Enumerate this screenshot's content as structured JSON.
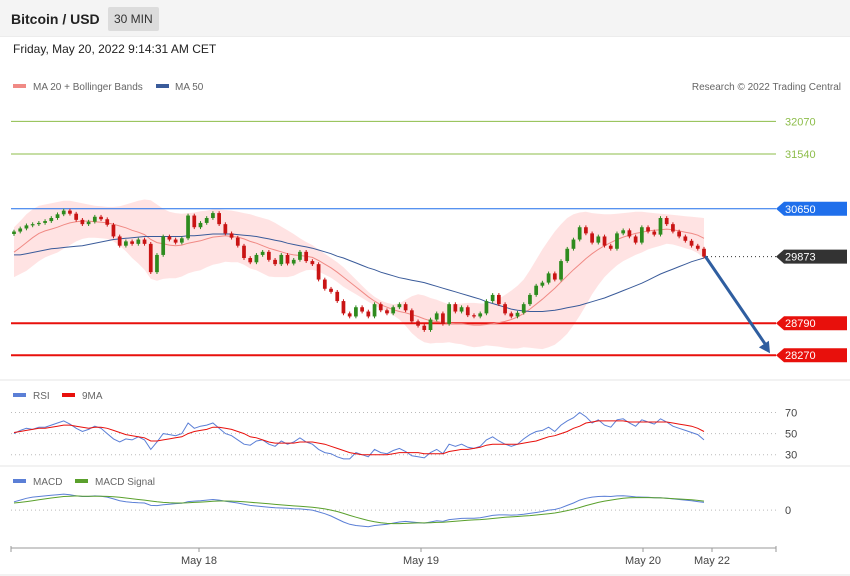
{
  "header": {
    "title": "Bitcoin / USD",
    "timeframe": "30 MIN"
  },
  "datetime": "Friday, May 20, 2022 9:14:31 AM CET",
  "copyright": "Research © 2022 Trading Central",
  "colors": {
    "resistance": "#8dbd4a",
    "pivot": "#1f6feb",
    "support": "#e8100c",
    "last": "#333333",
    "ma20": "#f08a85",
    "ma50": "#3a5b9a",
    "band": "#ffd9d9",
    "up": "#2e8b1e",
    "down": "#c91414",
    "rsi": "#5b7fd6",
    "rsi_ma": "#e8100c",
    "macd": "#5b7fd6",
    "macd_signal": "#5aa02c"
  },
  "chart_data": [
    {
      "type": "candlestick",
      "legend": [
        "MA 20 + Bollinger Bands",
        "MA 50"
      ],
      "ylim": [
        27900,
        32450
      ],
      "levels": [
        {
          "value": 32070,
          "label": "32070",
          "kind": "resistance"
        },
        {
          "value": 31540,
          "label": "31540",
          "kind": "resistance"
        },
        {
          "value": 30650,
          "label": "30650",
          "kind": "pivot"
        },
        {
          "value": 28790,
          "label": "28790",
          "kind": "support"
        },
        {
          "value": 28270,
          "label": "28270",
          "kind": "support"
        }
      ],
      "last_price": {
        "value": 29873,
        "label": "29873"
      },
      "forecast_arrow": {
        "from": 29860,
        "to": 28270
      },
      "closes": [
        30280,
        30330,
        30380,
        30400,
        30420,
        30450,
        30500,
        30560,
        30620,
        30570,
        30470,
        30400,
        30440,
        30520,
        30480,
        30390,
        30200,
        30050,
        30120,
        30080,
        30150,
        30080,
        29620,
        29900,
        30200,
        30150,
        30100,
        30170,
        30540,
        30350,
        30420,
        30500,
        30580,
        30400,
        30250,
        30180,
        30050,
        29850,
        29780,
        29900,
        29950,
        29820,
        29750,
        29900,
        29760,
        29820,
        29950,
        29800,
        29750,
        29500,
        29350,
        29300,
        29150,
        28950,
        28900,
        29050,
        28980,
        28900,
        29100,
        29000,
        28950,
        29050,
        29100,
        29000,
        28820,
        28750,
        28680,
        28850,
        28950,
        28780,
        29100,
        28980,
        29050,
        28920,
        28900,
        28950,
        29150,
        29250,
        29100,
        28950,
        28900,
        28960,
        29100,
        29250,
        29400,
        29450,
        29600,
        29500,
        29800,
        30000,
        30150,
        30350,
        30250,
        30100,
        30200,
        30050,
        30000,
        30250,
        30300,
        30200,
        30100,
        30350,
        30280,
        30230,
        30500,
        30400,
        30280,
        30200,
        30130,
        30050,
        30000,
        29873
      ],
      "ma20": [
        29945,
        30020,
        30100,
        30180,
        30250,
        30290,
        30320,
        30350,
        30390,
        30420,
        30440,
        30450,
        30450,
        30440,
        30430,
        30420,
        30400,
        30370,
        30340,
        30300,
        30270,
        30230,
        30150,
        30100,
        30080,
        30060,
        30050,
        30060,
        30090,
        30110,
        30130,
        30160,
        30190,
        30200,
        30210,
        30200,
        30190,
        30160,
        30120,
        30090,
        30050,
        30010,
        29980,
        29950,
        29920,
        29900,
        29890,
        29880,
        29860,
        29810,
        29750,
        29690,
        29620,
        29540,
        29460,
        29380,
        29300,
        29220,
        29150,
        29090,
        29050,
        29010,
        28980,
        28960,
        28930,
        28900,
        28860,
        28830,
        28820,
        28800,
        28790,
        28780,
        28780,
        28770,
        28760,
        28760,
        28770,
        28780,
        28800,
        28820,
        28850,
        28890,
        28950,
        29020,
        29100,
        29180,
        29270,
        29360,
        29460,
        29560,
        29660,
        29750,
        29840,
        29920,
        29990,
        30050,
        30100,
        30150,
        30190,
        30220,
        30250,
        30270,
        30290,
        30300,
        30310,
        30320,
        30310,
        30290,
        30270,
        30250,
        30220,
        30170
      ],
      "band_upper": [
        30350,
        30450,
        30560,
        30640,
        30700,
        30720,
        30740,
        30760,
        30780,
        30780,
        30760,
        30740,
        30720,
        30700,
        30690,
        30680,
        30680,
        30690,
        30720,
        30750,
        30780,
        30800,
        30790,
        30720,
        30650,
        30600,
        30580,
        30570,
        30580,
        30590,
        30610,
        30620,
        30640,
        30640,
        30630,
        30620,
        30600,
        30580,
        30560,
        30530,
        30500,
        30470,
        30420,
        30360,
        30300,
        30240,
        30170,
        30110,
        30060,
        29990,
        29920,
        29850,
        29780,
        29700,
        29600,
        29500,
        29400,
        29300,
        29220,
        29160,
        29120,
        29100,
        29110,
        29170,
        29230,
        29260,
        29240,
        29200,
        29170,
        29130,
        29100,
        29100,
        29110,
        29120,
        29120,
        29110,
        29110,
        29140,
        29190,
        29250,
        29320,
        29400,
        29500,
        29650,
        29820,
        29990,
        30140,
        30280,
        30400,
        30500,
        30560,
        30590,
        30600,
        30580,
        30570,
        30560,
        30560,
        30570,
        30580,
        30590,
        30600,
        30600,
        30590,
        30580,
        30570,
        30560,
        30550,
        30540,
        30530,
        30520,
        30510,
        30500
      ],
      "band_lower": [
        29540,
        29590,
        29640,
        29720,
        29800,
        29860,
        29900,
        29940,
        30000,
        30060,
        30120,
        30160,
        30180,
        30180,
        30170,
        30160,
        30120,
        30050,
        29960,
        29850,
        29760,
        29660,
        29510,
        29480,
        29510,
        29520,
        29520,
        29550,
        29600,
        29630,
        29650,
        29700,
        29740,
        29760,
        29790,
        29780,
        29780,
        29740,
        29680,
        29650,
        29600,
        29550,
        29540,
        29540,
        29540,
        29560,
        29610,
        29650,
        29660,
        29630,
        29580,
        29530,
        29460,
        29380,
        29320,
        29260,
        29200,
        29140,
        29080,
        29020,
        28980,
        28920,
        28850,
        28750,
        28630,
        28540,
        28480,
        28460,
        28470,
        28470,
        28480,
        28460,
        28450,
        28420,
        28400,
        28410,
        28430,
        28420,
        28410,
        28390,
        28380,
        28380,
        28400,
        28390,
        28380,
        28370,
        28400,
        28440,
        28520,
        28620,
        28760,
        28910,
        29080,
        29260,
        29410,
        29540,
        29640,
        29730,
        29800,
        29850,
        29900,
        29940,
        29990,
        30020,
        30050,
        30080,
        30070,
        30040,
        30010,
        29980,
        29930,
        29840
      ],
      "ma50": [
        29900,
        29900,
        29920,
        29940,
        29960,
        29980,
        30000,
        30010,
        30020,
        30030,
        30040,
        30050,
        30070,
        30090,
        30110,
        30130,
        30150,
        30160,
        30170,
        30180,
        30190,
        30200,
        30200,
        30200,
        30200,
        30200,
        30200,
        30200,
        30210,
        30210,
        30220,
        30230,
        30240,
        30240,
        30240,
        30240,
        30230,
        30220,
        30210,
        30200,
        30180,
        30160,
        30140,
        30120,
        30090,
        30070,
        30050,
        30030,
        30010,
        29980,
        29950,
        29920,
        29880,
        29850,
        29810,
        29770,
        29730,
        29690,
        29660,
        29620,
        29590,
        29560,
        29530,
        29510,
        29490,
        29470,
        29450,
        29420,
        29390,
        29360,
        29330,
        29300,
        29270,
        29240,
        29210,
        29180,
        29140,
        29110,
        29080,
        29050,
        29020,
        29000,
        28990,
        28980,
        28980,
        28980,
        28990,
        29000,
        29020,
        29040,
        29060,
        29080,
        29110,
        29140,
        29170,
        29200,
        29240,
        29280,
        29320,
        29360,
        29400,
        29440,
        29490,
        29540,
        29590,
        29630,
        29670,
        29710,
        29750,
        29790,
        29820,
        29850
      ]
    },
    {
      "type": "line",
      "legend": [
        "RSI",
        "9MA"
      ],
      "ylim": [
        25,
        78
      ],
      "yticks": [
        70,
        50,
        30
      ],
      "reference_lines": [
        70,
        50,
        30
      ],
      "series": [
        {
          "name": "RSI",
          "values": [
            50,
            53,
            55,
            54,
            56,
            56,
            58,
            60,
            62,
            59,
            55,
            52,
            54,
            57,
            55,
            50,
            45,
            42,
            45,
            44,
            47,
            44,
            35,
            42,
            50,
            49,
            48,
            50,
            60,
            55,
            57,
            58,
            60,
            55,
            50,
            48,
            44,
            40,
            39,
            43,
            44,
            40,
            38,
            43,
            40,
            42,
            46,
            42,
            40,
            35,
            32,
            31,
            28,
            26,
            26,
            32,
            30,
            28,
            35,
            32,
            31,
            34,
            36,
            33,
            29,
            28,
            27,
            32,
            35,
            31,
            40,
            38,
            40,
            37,
            36,
            38,
            44,
            47,
            43,
            40,
            38,
            40,
            45,
            49,
            52,
            53,
            56,
            52,
            58,
            62,
            65,
            70,
            66,
            60,
            63,
            58,
            56,
            63,
            64,
            60,
            57,
            63,
            61,
            59,
            64,
            61,
            57,
            55,
            53,
            51,
            49,
            44
          ]
        },
        {
          "name": "9MA",
          "values": [
            51,
            52,
            53,
            54,
            55,
            55,
            56,
            57,
            58,
            58,
            57,
            56,
            55,
            56,
            56,
            55,
            53,
            51,
            49,
            48,
            47,
            46,
            43,
            43,
            44,
            45,
            46,
            47,
            50,
            52,
            53,
            54,
            56,
            56,
            55,
            54,
            52,
            50,
            47,
            46,
            44,
            42,
            41,
            41,
            41,
            41,
            42,
            42,
            42,
            41,
            40,
            38,
            36,
            34,
            32,
            31,
            30,
            30,
            30,
            30,
            30,
            31,
            32,
            32,
            32,
            32,
            31,
            31,
            31,
            31,
            33,
            34,
            35,
            35,
            36,
            37,
            39,
            40,
            40,
            40,
            40,
            40,
            41,
            42,
            43,
            45,
            47,
            48,
            50,
            52,
            55,
            57,
            60,
            61,
            62,
            62,
            62,
            62,
            62,
            61,
            61,
            61,
            61,
            61,
            61,
            61,
            60,
            59,
            58,
            57,
            55,
            52
          ]
        }
      ]
    },
    {
      "type": "line",
      "legend": [
        "MACD",
        "MACD Signal"
      ],
      "ylim": [
        -320,
        170
      ],
      "yticks": [
        0
      ],
      "reference_lines": [
        0
      ],
      "x_ticks": [
        "May 18",
        "May 19",
        "May 20",
        "May 22"
      ],
      "series": [
        {
          "name": "MACD",
          "values": [
            70,
            85,
            100,
            110,
            115,
            120,
            125,
            130,
            135,
            130,
            120,
            115,
            115,
            120,
            118,
            110,
            95,
            80,
            70,
            65,
            62,
            60,
            40,
            38,
            45,
            50,
            55,
            58,
            72,
            76,
            80,
            85,
            90,
            85,
            75,
            68,
            60,
            50,
            40,
            35,
            30,
            25,
            20,
            18,
            15,
            12,
            10,
            5,
            0,
            -15,
            -30,
            -50,
            -75,
            -100,
            -120,
            -130,
            -135,
            -140,
            -130,
            -125,
            -120,
            -110,
            -100,
            -95,
            -100,
            -105,
            -110,
            -100,
            -90,
            -95,
            -80,
            -75,
            -70,
            -68,
            -68,
            -65,
            -55,
            -45,
            -40,
            -40,
            -42,
            -40,
            -35,
            -28,
            -20,
            -12,
            0,
            5,
            20,
            40,
            60,
            85,
            100,
            110,
            115,
            118,
            115,
            120,
            122,
            118,
            112,
            110,
            108,
            105,
            104,
            100,
            95,
            90,
            85,
            80,
            72,
            65
          ]
        },
        {
          "name": "MACD Signal",
          "values": [
            60,
            65,
            72,
            80,
            88,
            95,
            102,
            108,
            115,
            118,
            120,
            118,
            117,
            117,
            117,
            116,
            113,
            108,
            102,
            96,
            90,
            85,
            77,
            70,
            65,
            62,
            60,
            60,
            62,
            65,
            68,
            71,
            75,
            77,
            77,
            76,
            74,
            71,
            66,
            62,
            58,
            53,
            48,
            44,
            40,
            36,
            32,
            28,
            24,
            18,
            10,
            0,
            -12,
            -28,
            -45,
            -60,
            -74,
            -88,
            -98,
            -106,
            -112,
            -114,
            -114,
            -112,
            -110,
            -108,
            -108,
            -106,
            -104,
            -102,
            -98,
            -94,
            -90,
            -86,
            -83,
            -80,
            -76,
            -71,
            -66,
            -61,
            -57,
            -54,
            -50,
            -46,
            -41,
            -36,
            -30,
            -24,
            -15,
            -4,
            8,
            22,
            38,
            52,
            65,
            76,
            85,
            93,
            100,
            104,
            106,
            106,
            106,
            105,
            103,
            100,
            97,
            94,
            91,
            87,
            82,
            76
          ]
        }
      ]
    }
  ]
}
